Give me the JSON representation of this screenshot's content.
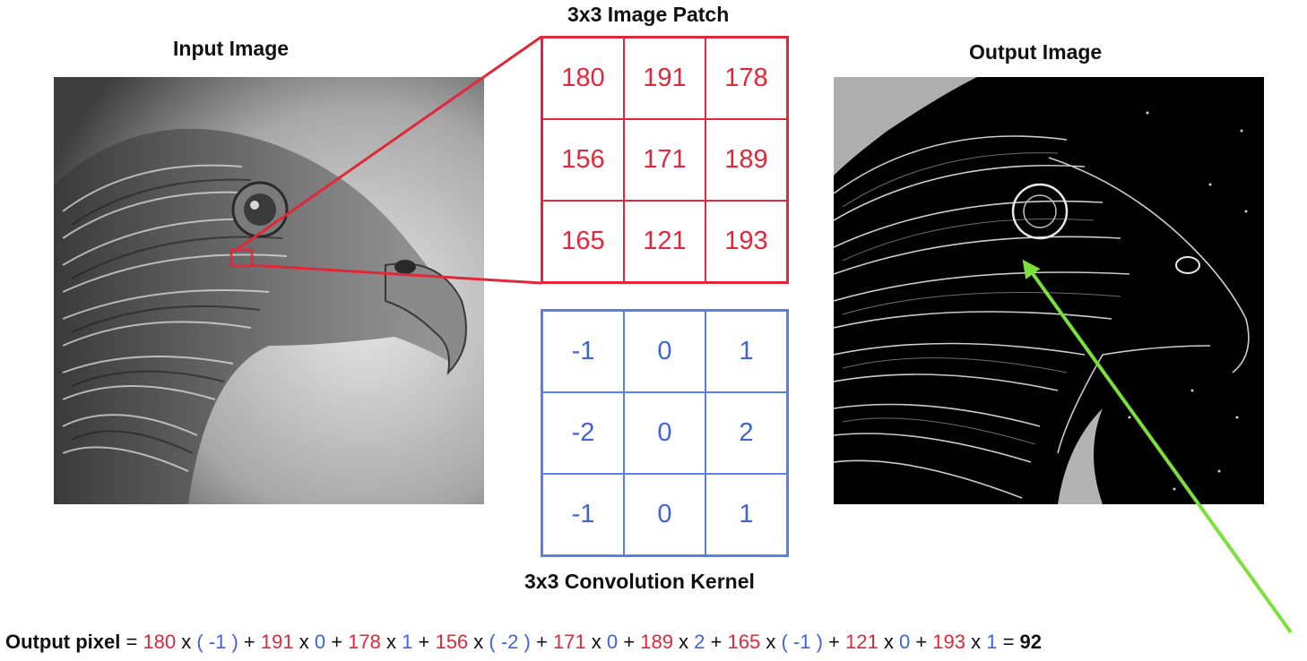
{
  "titles": {
    "input": "Input Image",
    "patch": "3x3 Image Patch",
    "output": "Output Image",
    "kernel": "3x3 Convolution Kernel"
  },
  "patch": [
    [
      "180",
      "191",
      "178"
    ],
    [
      "156",
      "171",
      "189"
    ],
    [
      "165",
      "121",
      "193"
    ]
  ],
  "kernel": [
    [
      "-1",
      "0",
      "1"
    ],
    [
      "-2",
      "0",
      "2"
    ],
    [
      "-1",
      "0",
      "1"
    ]
  ],
  "formula": {
    "label": "Output pixel",
    "equals": "=",
    "terms": [
      {
        "v": "180",
        "k": "( -1 )"
      },
      {
        "v": "191",
        "k": "0"
      },
      {
        "v": "178",
        "k": "1"
      },
      {
        "v": "156",
        "k": "( -2 )"
      },
      {
        "v": "171",
        "k": "0"
      },
      {
        "v": "189",
        "k": "2"
      },
      {
        "v": "165",
        "k": "( -1 )"
      },
      {
        "v": "121",
        "k": "0"
      },
      {
        "v": "193",
        "k": "1"
      }
    ],
    "times": "x",
    "plus": "+",
    "result": "92"
  },
  "colors": {
    "patch": "#e0283a",
    "kernel": "#5a80e8",
    "arrow": "#7ce03a"
  }
}
